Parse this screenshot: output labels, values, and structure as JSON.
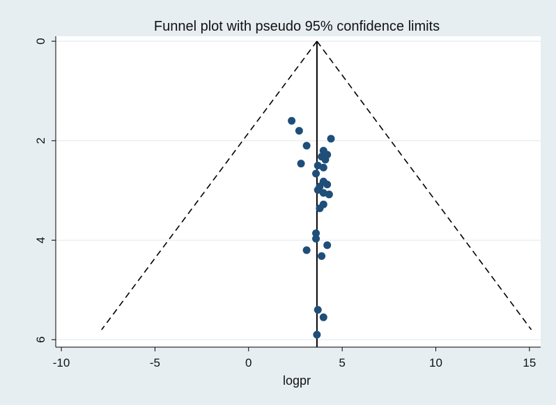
{
  "chart_data": {
    "type": "scatter",
    "title": "Funnel plot with pseudo 95% confidence limits",
    "xlabel": "logpr",
    "ylabel": "",
    "xlim": [
      -10.3,
      15.6
    ],
    "ylim": [
      6.15,
      -0.1
    ],
    "y_reversed": true,
    "xticks": [
      -10,
      -5,
      0,
      5,
      10,
      15
    ],
    "xtick_labels": [
      "-10",
      "-5",
      "0",
      "5",
      "10",
      "15"
    ],
    "yticks": [
      0,
      2,
      4,
      6
    ],
    "ytick_labels": [
      "0",
      "2",
      "4",
      "6"
    ],
    "grid": "horizontal",
    "pooled_estimate": 3.65,
    "ci_lower_line": [
      [
        3.65,
        0
      ],
      [
        -7.85,
        5.8
      ]
    ],
    "ci_upper_line": [
      [
        3.65,
        0
      ],
      [
        15.1,
        5.8
      ]
    ],
    "marker_color": "#1f4e79",
    "points": [
      {
        "x": 2.3,
        "y": 1.6
      },
      {
        "x": 2.7,
        "y": 1.8
      },
      {
        "x": 4.4,
        "y": 1.96
      },
      {
        "x": 3.1,
        "y": 2.1
      },
      {
        "x": 4.0,
        "y": 2.2
      },
      {
        "x": 4.2,
        "y": 2.28
      },
      {
        "x": 3.9,
        "y": 2.32
      },
      {
        "x": 4.1,
        "y": 2.38
      },
      {
        "x": 2.8,
        "y": 2.46
      },
      {
        "x": 3.7,
        "y": 2.5
      },
      {
        "x": 4.0,
        "y": 2.54
      },
      {
        "x": 3.6,
        "y": 2.66
      },
      {
        "x": 4.0,
        "y": 2.82
      },
      {
        "x": 4.2,
        "y": 2.88
      },
      {
        "x": 3.8,
        "y": 2.92
      },
      {
        "x": 3.7,
        "y": 2.99
      },
      {
        "x": 4.0,
        "y": 3.05
      },
      {
        "x": 4.3,
        "y": 3.08
      },
      {
        "x": 4.0,
        "y": 3.28
      },
      {
        "x": 3.8,
        "y": 3.36
      },
      {
        "x": 3.6,
        "y": 3.86
      },
      {
        "x": 3.6,
        "y": 3.97
      },
      {
        "x": 4.2,
        "y": 4.1
      },
      {
        "x": 3.1,
        "y": 4.2
      },
      {
        "x": 3.9,
        "y": 4.32
      },
      {
        "x": 3.7,
        "y": 5.4
      },
      {
        "x": 4.0,
        "y": 5.55
      },
      {
        "x": 3.65,
        "y": 5.9
      }
    ]
  }
}
